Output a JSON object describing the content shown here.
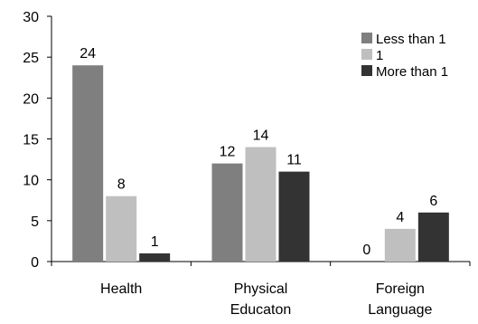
{
  "chart_data": {
    "type": "bar",
    "categories": [
      [
        "Health"
      ],
      [
        "Physical",
        "Educaton"
      ],
      [
        "Foreign",
        "Language"
      ]
    ],
    "series": [
      {
        "name": "Less than 1",
        "values": [
          24,
          12,
          0
        ],
        "color": "#7f7f7f"
      },
      {
        "name": "1",
        "values": [
          8,
          14,
          4
        ],
        "color": "#bfbfbf"
      },
      {
        "name": "More than 1",
        "values": [
          1,
          11,
          6
        ],
        "color": "#333333"
      }
    ],
    "ylim": [
      0,
      30
    ],
    "yticks": [
      0,
      5,
      10,
      15,
      20,
      25,
      30
    ],
    "legend_position": "top-right",
    "grid": false
  }
}
